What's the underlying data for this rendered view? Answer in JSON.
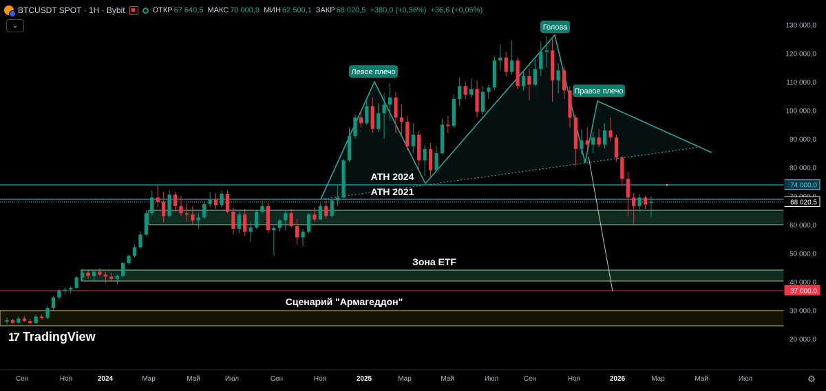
{
  "header": {
    "symbol": "BTCUSDT SPOT · 1H · Bybit",
    "open_label": "ОТКР",
    "open_value": "67 640,5",
    "high_label": "МАКС",
    "high_value": "70 000,9",
    "low_label": "МИН",
    "low_value": "62 500,1",
    "close_label": "ЗАКР",
    "close_value": "68 020,5",
    "change": "+380,0 (+0,56%)",
    "change2": "+36,6 (+0,05%)"
  },
  "collapse_icon": "chevron-down",
  "brand": "TradingView",
  "colors": {
    "background": "#000000",
    "up": "#089981",
    "down": "#f23645",
    "pattern": "#26a69a",
    "zone_fill": "#0f2a1e",
    "zone_border": "#b7f7c9",
    "level_line": "#4dd0e1",
    "armageddon_line": "#f23645",
    "armageddon_zone": "#f2e05a"
  },
  "chart_data": {
    "type": "candlestick",
    "instrument": "BTCUSDT",
    "axis_labels": [
      "130 000,0",
      "120 000,0",
      "110 000,0",
      "100 000,0",
      "90 000,0",
      "80 000,0",
      "70 000,0",
      "60 000,0",
      "50 000,0",
      "40 000,0",
      "30 000,0",
      "20 000,0"
    ],
    "x_ticks": [
      "Сен",
      "Ноя",
      "2024",
      "Мар",
      "Май",
      "Июл",
      "Сен",
      "Ноя",
      "2025",
      "Мар",
      "Май",
      "Июл",
      "Сен",
      "Ноя",
      "2026",
      "Мар",
      "Май",
      "Июл"
    ],
    "ylim": [
      15000,
      135000
    ],
    "grid": false,
    "price_tags": [
      {
        "value": 74000,
        "text": "74 000,0",
        "color": "#4dd0e1",
        "fill": "#0b3b4a"
      },
      {
        "value": 68020.5,
        "text": "68 020,5",
        "color": "#ffffff",
        "fill": "#000000"
      },
      {
        "value": 37000,
        "text": "37 000,0",
        "color": "#f23645",
        "fill": "#f23645"
      }
    ],
    "annotations": [
      {
        "text": "Левое плечо"
      },
      {
        "text": "Голова"
      },
      {
        "text": "Правое плечо"
      },
      {
        "text": "ATH 2024"
      },
      {
        "text": "ATH 2021"
      },
      {
        "text": "Зона ETF"
      },
      {
        "text": "Сценарий \"Армагеддон\""
      }
    ],
    "zones": [
      {
        "name": "ATH zone",
        "from": 60000,
        "to": 65000
      },
      {
        "name": "ETF zone",
        "from": 40000,
        "to": 44000
      },
      {
        "name": "Armageddon zone",
        "from": 24000,
        "to": 30000
      }
    ],
    "levels": [
      74000,
      69000,
      37000
    ],
    "head_and_shoulders": {
      "left_shoulder": 110000,
      "head": 126000,
      "right_shoulder": 103000,
      "neckline_start": 68000,
      "neckline_end": 87000
    },
    "candles": [
      {
        "o": 26000,
        "h": 27500,
        "l": 25000,
        "c": 26500
      },
      {
        "o": 26500,
        "h": 27000,
        "l": 25200,
        "c": 25600
      },
      {
        "o": 25600,
        "h": 27800,
        "l": 25300,
        "c": 27100
      },
      {
        "o": 27100,
        "h": 28000,
        "l": 26000,
        "c": 26200
      },
      {
        "o": 26200,
        "h": 27000,
        "l": 25000,
        "c": 25500
      },
      {
        "o": 25500,
        "h": 28500,
        "l": 25300,
        "c": 27800
      },
      {
        "o": 27800,
        "h": 28500,
        "l": 26800,
        "c": 27300
      },
      {
        "o": 27300,
        "h": 31500,
        "l": 27000,
        "c": 30800
      },
      {
        "o": 30800,
        "h": 35000,
        "l": 30200,
        "c": 34500
      },
      {
        "o": 34500,
        "h": 37500,
        "l": 33800,
        "c": 36800
      },
      {
        "o": 36800,
        "h": 38000,
        "l": 35500,
        "c": 37200
      },
      {
        "o": 37200,
        "h": 38500,
        "l": 36000,
        "c": 37800
      },
      {
        "o": 37800,
        "h": 42000,
        "l": 37500,
        "c": 41500
      },
      {
        "o": 41500,
        "h": 44500,
        "l": 40500,
        "c": 43200
      },
      {
        "o": 43200,
        "h": 44000,
        "l": 41000,
        "c": 42000
      },
      {
        "o": 42000,
        "h": 43800,
        "l": 40000,
        "c": 43500
      },
      {
        "o": 43500,
        "h": 44700,
        "l": 42000,
        "c": 42500
      },
      {
        "o": 42500,
        "h": 43500,
        "l": 39500,
        "c": 41800
      },
      {
        "o": 41800,
        "h": 43000,
        "l": 40200,
        "c": 41000
      },
      {
        "o": 41000,
        "h": 42500,
        "l": 39000,
        "c": 42000
      },
      {
        "o": 42000,
        "h": 47000,
        "l": 41500,
        "c": 46500
      },
      {
        "o": 46500,
        "h": 49500,
        "l": 46000,
        "c": 49000
      },
      {
        "o": 49000,
        "h": 53000,
        "l": 48500,
        "c": 52000
      },
      {
        "o": 52000,
        "h": 57500,
        "l": 51500,
        "c": 56500
      },
      {
        "o": 56500,
        "h": 65000,
        "l": 56000,
        "c": 64000
      },
      {
        "o": 64000,
        "h": 72000,
        "l": 63000,
        "c": 69500
      },
      {
        "o": 69500,
        "h": 73800,
        "l": 66000,
        "c": 68000
      },
      {
        "o": 68000,
        "h": 71500,
        "l": 60800,
        "c": 63000
      },
      {
        "o": 63000,
        "h": 72000,
        "l": 62500,
        "c": 70500
      },
      {
        "o": 70500,
        "h": 71500,
        "l": 64500,
        "c": 66500
      },
      {
        "o": 66500,
        "h": 70000,
        "l": 63000,
        "c": 64000
      },
      {
        "o": 64000,
        "h": 67500,
        "l": 61000,
        "c": 63500
      },
      {
        "o": 63500,
        "h": 66500,
        "l": 60000,
        "c": 61500
      },
      {
        "o": 61500,
        "h": 64000,
        "l": 58500,
        "c": 62500
      },
      {
        "o": 62500,
        "h": 68000,
        "l": 62000,
        "c": 67200
      },
      {
        "o": 67200,
        "h": 71500,
        "l": 66000,
        "c": 69000
      },
      {
        "o": 69000,
        "h": 71000,
        "l": 65500,
        "c": 66800
      },
      {
        "o": 66800,
        "h": 71800,
        "l": 66000,
        "c": 70800
      },
      {
        "o": 70800,
        "h": 72000,
        "l": 64000,
        "c": 64500
      },
      {
        "o": 64500,
        "h": 66000,
        "l": 56500,
        "c": 58500
      },
      {
        "o": 58500,
        "h": 64500,
        "l": 57000,
        "c": 63500
      },
      {
        "o": 63500,
        "h": 65500,
        "l": 56000,
        "c": 57500
      },
      {
        "o": 57500,
        "h": 61000,
        "l": 54000,
        "c": 59000
      },
      {
        "o": 59000,
        "h": 65000,
        "l": 58500,
        "c": 64500
      },
      {
        "o": 64500,
        "h": 68500,
        "l": 64000,
        "c": 66500
      },
      {
        "o": 66500,
        "h": 67500,
        "l": 57000,
        "c": 58000
      },
      {
        "o": 58000,
        "h": 59500,
        "l": 49000,
        "c": 58800
      },
      {
        "o": 58800,
        "h": 62000,
        "l": 57500,
        "c": 61500
      },
      {
        "o": 61500,
        "h": 65000,
        "l": 58000,
        "c": 64000
      },
      {
        "o": 64000,
        "h": 65500,
        "l": 59000,
        "c": 59500
      },
      {
        "o": 59500,
        "h": 62000,
        "l": 53000,
        "c": 55500
      },
      {
        "o": 55500,
        "h": 58500,
        "l": 52500,
        "c": 57500
      },
      {
        "o": 57500,
        "h": 64000,
        "l": 57000,
        "c": 63500
      },
      {
        "o": 63500,
        "h": 66000,
        "l": 61000,
        "c": 61800
      },
      {
        "o": 61800,
        "h": 67500,
        "l": 61500,
        "c": 66500
      },
      {
        "o": 66500,
        "h": 68500,
        "l": 62000,
        "c": 63000
      },
      {
        "o": 63000,
        "h": 69000,
        "l": 62500,
        "c": 68500
      },
      {
        "o": 68500,
        "h": 74000,
        "l": 66500,
        "c": 69500
      },
      {
        "o": 69500,
        "h": 83000,
        "l": 69000,
        "c": 82500
      },
      {
        "o": 82500,
        "h": 94000,
        "l": 82000,
        "c": 91000
      },
      {
        "o": 91000,
        "h": 98500,
        "l": 90000,
        "c": 97500
      },
      {
        "o": 97500,
        "h": 99500,
        "l": 94000,
        "c": 95500
      },
      {
        "o": 95500,
        "h": 104000,
        "l": 95000,
        "c": 101500
      },
      {
        "o": 101500,
        "h": 104500,
        "l": 92000,
        "c": 93500
      },
      {
        "o": 93500,
        "h": 102500,
        "l": 92500,
        "c": 99000
      },
      {
        "o": 99000,
        "h": 106000,
        "l": 90000,
        "c": 102000
      },
      {
        "o": 102000,
        "h": 109500,
        "l": 96500,
        "c": 104500
      },
      {
        "o": 104500,
        "h": 106500,
        "l": 92000,
        "c": 97500
      },
      {
        "o": 97500,
        "h": 102000,
        "l": 91500,
        "c": 96000
      },
      {
        "o": 96000,
        "h": 98000,
        "l": 86000,
        "c": 87500
      },
      {
        "o": 87500,
        "h": 95500,
        "l": 85000,
        "c": 91500
      },
      {
        "o": 91500,
        "h": 93000,
        "l": 78500,
        "c": 82500
      },
      {
        "o": 82500,
        "h": 88000,
        "l": 77000,
        "c": 86500
      },
      {
        "o": 86500,
        "h": 88500,
        "l": 76500,
        "c": 79000
      },
      {
        "o": 79000,
        "h": 87500,
        "l": 78500,
        "c": 85000
      },
      {
        "o": 85000,
        "h": 97000,
        "l": 84500,
        "c": 95000
      },
      {
        "o": 95000,
        "h": 98000,
        "l": 92000,
        "c": 94500
      },
      {
        "o": 94500,
        "h": 105500,
        "l": 94000,
        "c": 104000
      },
      {
        "o": 104000,
        "h": 111500,
        "l": 101500,
        "c": 108500
      },
      {
        "o": 108500,
        "h": 110000,
        "l": 104000,
        "c": 105500
      },
      {
        "o": 105500,
        "h": 111000,
        "l": 104500,
        "c": 107500
      },
      {
        "o": 107500,
        "h": 110500,
        "l": 97500,
        "c": 99500
      },
      {
        "o": 99500,
        "h": 108500,
        "l": 98500,
        "c": 106500
      },
      {
        "o": 106500,
        "h": 109000,
        "l": 104000,
        "c": 108000
      },
      {
        "o": 108000,
        "h": 119000,
        "l": 107000,
        "c": 117500
      },
      {
        "o": 117500,
        "h": 123000,
        "l": 114000,
        "c": 118500
      },
      {
        "o": 118500,
        "h": 120500,
        "l": 112000,
        "c": 113500
      },
      {
        "o": 113500,
        "h": 124500,
        "l": 112500,
        "c": 117500
      },
      {
        "o": 117500,
        "h": 118500,
        "l": 107500,
        "c": 108500
      },
      {
        "o": 108500,
        "h": 113500,
        "l": 107000,
        "c": 112000
      },
      {
        "o": 112000,
        "h": 114500,
        "l": 103500,
        "c": 109000
      },
      {
        "o": 109000,
        "h": 118000,
        "l": 108500,
        "c": 114500
      },
      {
        "o": 114500,
        "h": 124000,
        "l": 112000,
        "c": 120500
      },
      {
        "o": 120500,
        "h": 126000,
        "l": 115000,
        "c": 121000
      },
      {
        "o": 121000,
        "h": 125000,
        "l": 103000,
        "c": 110500
      },
      {
        "o": 110500,
        "h": 116500,
        "l": 106000,
        "c": 114000
      },
      {
        "o": 114000,
        "h": 115500,
        "l": 104000,
        "c": 107000
      },
      {
        "o": 107000,
        "h": 108500,
        "l": 94000,
        "c": 97500
      },
      {
        "o": 97500,
        "h": 98500,
        "l": 80500,
        "c": 86500
      },
      {
        "o": 86500,
        "h": 93500,
        "l": 84500,
        "c": 89500
      },
      {
        "o": 89500,
        "h": 94000,
        "l": 86000,
        "c": 88000
      },
      {
        "o": 88000,
        "h": 92500,
        "l": 85000,
        "c": 90500
      },
      {
        "o": 90500,
        "h": 93500,
        "l": 87000,
        "c": 88000
      },
      {
        "o": 88000,
        "h": 95500,
        "l": 86500,
        "c": 93000
      },
      {
        "o": 93000,
        "h": 97500,
        "l": 89000,
        "c": 90500
      },
      {
        "o": 90500,
        "h": 91500,
        "l": 82000,
        "c": 83500
      },
      {
        "o": 83500,
        "h": 84000,
        "l": 73500,
        "c": 76000
      },
      {
        "o": 76000,
        "h": 78500,
        "l": 63000,
        "c": 69500
      },
      {
        "o": 69500,
        "h": 71000,
        "l": 60000,
        "c": 66500
      },
      {
        "o": 66500,
        "h": 70500,
        "l": 64500,
        "c": 69500
      },
      {
        "o": 69500,
        "h": 70000,
        "l": 65500,
        "c": 67000
      },
      {
        "o": 67640.5,
        "h": 70000.9,
        "l": 62500.1,
        "c": 68020.5
      }
    ]
  }
}
